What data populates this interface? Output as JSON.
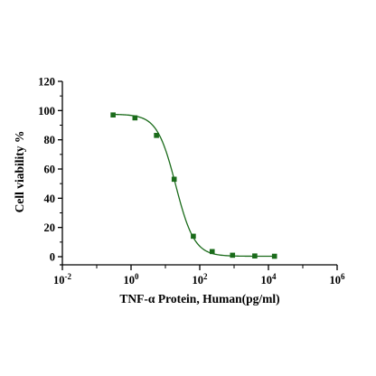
{
  "chart_data": {
    "type": "scatter",
    "xlabel": "TNF-α Protein, Human(pg/ml)",
    "ylabel": "Cell viability %",
    "x_scale": "log",
    "xlim": [
      0.01,
      1000000
    ],
    "ylim": [
      0,
      120
    ],
    "x_ticks": [
      {
        "base": "10",
        "exp": "-2"
      },
      {
        "base": "10",
        "exp": "0"
      },
      {
        "base": "10",
        "exp": "2"
      },
      {
        "base": "10",
        "exp": "4"
      },
      {
        "base": "10",
        "exp": "6"
      }
    ],
    "y_ticks": [
      "0",
      "20",
      "40",
      "60",
      "80",
      "100",
      "120"
    ],
    "grid": false,
    "legend": "none",
    "colors": {
      "series": "#1a6b1a",
      "axis": "#000000"
    },
    "series": [
      {
        "x": [
          0.3,
          1.3,
          5.5,
          18,
          65,
          230,
          900,
          4000,
          15000
        ],
        "y": [
          97,
          95,
          83,
          53,
          14,
          3.5,
          1,
          0.5,
          0.3
        ],
        "fit_curve": {
          "top": 97.5,
          "bottom": 0.3,
          "ec50": 20,
          "hill": 1.6
        }
      }
    ]
  }
}
